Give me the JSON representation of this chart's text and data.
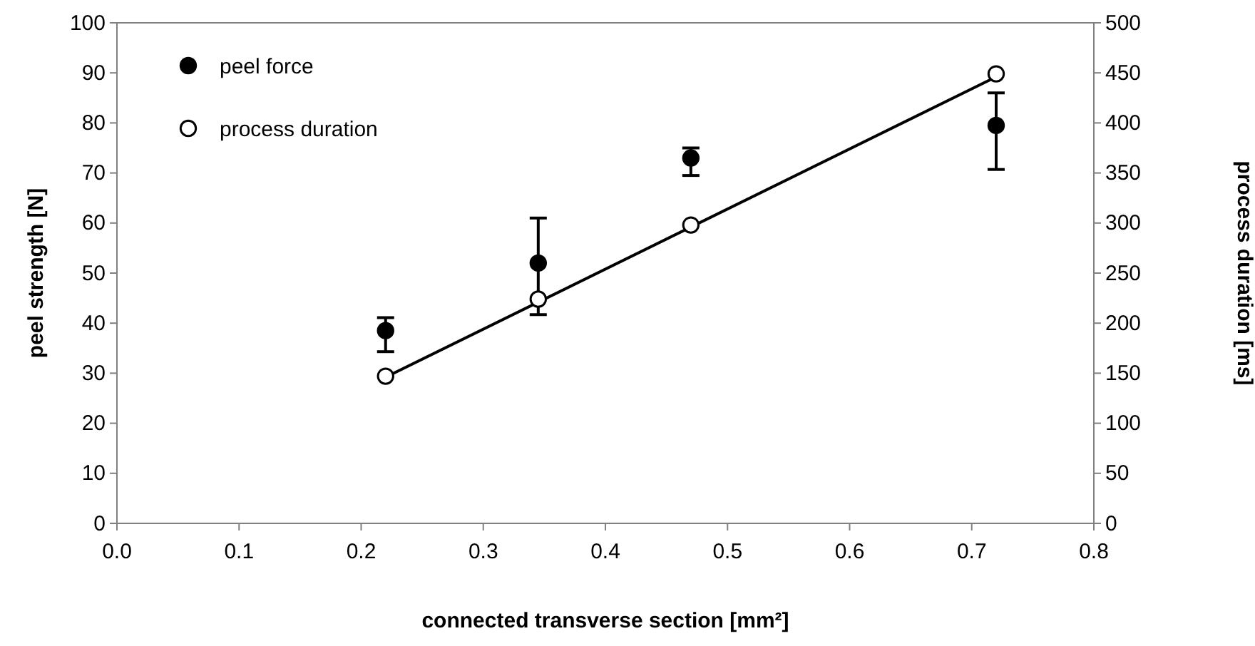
{
  "chart_data": {
    "type": "scatter",
    "xlabel": "connected transverse section [mm²]",
    "ylabel": "peel strength [N]",
    "y2label": "process duration [ms]",
    "xlim": [
      0,
      0.8
    ],
    "xticks": [
      {
        "value": 0,
        "label": "0.0"
      },
      0.1,
      0.2,
      0.3,
      0.4,
      0.5,
      0.6,
      0.7,
      0.8
    ],
    "ylim": [
      0,
      100
    ],
    "yticks": [
      0,
      10,
      20,
      30,
      40,
      50,
      60,
      70,
      80,
      90,
      100
    ],
    "y2lim": [
      0,
      500
    ],
    "y2ticks": [
      0,
      50,
      100,
      150,
      200,
      250,
      300,
      350,
      400,
      450,
      500
    ],
    "legend": "top left",
    "grid": false,
    "marker": "circle",
    "series": [
      {
        "name": "peel force",
        "color": "#000000",
        "x": [
          0.22,
          0.345,
          0.47,
          0.72
        ],
        "values": [
          38.5,
          52,
          73,
          79.5
        ],
        "errors": [
          [
            34.3,
            41.1
          ],
          [
            41.7,
            61
          ],
          [
            69.5,
            75
          ],
          [
            70.7,
            86
          ]
        ]
      },
      {
        "name": "process duration",
        "axis": "y2",
        "color": "#ffffff",
        "x": [
          0.22,
          0.345,
          0.47,
          0.72
        ],
        "values": [
          147,
          224,
          298,
          449
        ]
      },
      {
        "type": "line",
        "axis": "y2",
        "color": "#000000",
        "marker": "none",
        "x": [
          0.22,
          0.72
        ],
        "values": [
          146,
          446
        ]
      }
    ]
  }
}
